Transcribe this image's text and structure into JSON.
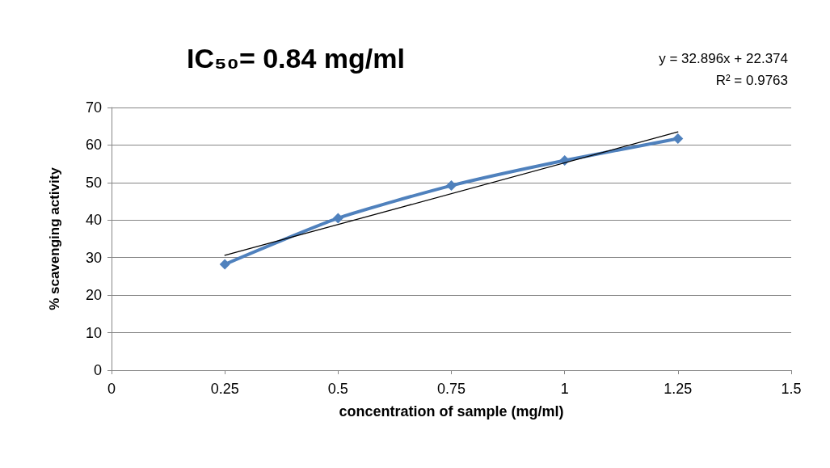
{
  "chart_data": {
    "type": "line",
    "title": "IC₅₀= 0.84 mg/ml",
    "xlabel": "concentration of sample (mg/ml)",
    "ylabel": "% scavenging activity",
    "annotations": [
      "y = 32.896x + 22.374",
      "R² = 0.9763"
    ],
    "series": [
      {
        "color": "#4f81bd",
        "marker": "diamond",
        "x": [
          0.25,
          0.5,
          0.75,
          1,
          1.25
        ],
        "values": [
          28.2,
          40.5,
          49.2,
          55.9,
          61.7
        ]
      },
      {
        "color": "#000000",
        "marker": "none",
        "x": [
          0.25,
          1.25
        ],
        "values": [
          30.6,
          63.5
        ]
      }
    ],
    "xlim": [
      0,
      1.5
    ],
    "xticks": [
      0,
      0.25,
      0.5,
      0.75,
      1,
      1.25,
      1.5
    ],
    "ylim": [
      0,
      70
    ],
    "yticks": [
      0,
      10,
      20,
      30,
      40,
      50,
      60,
      70
    ],
    "grid": "y"
  }
}
